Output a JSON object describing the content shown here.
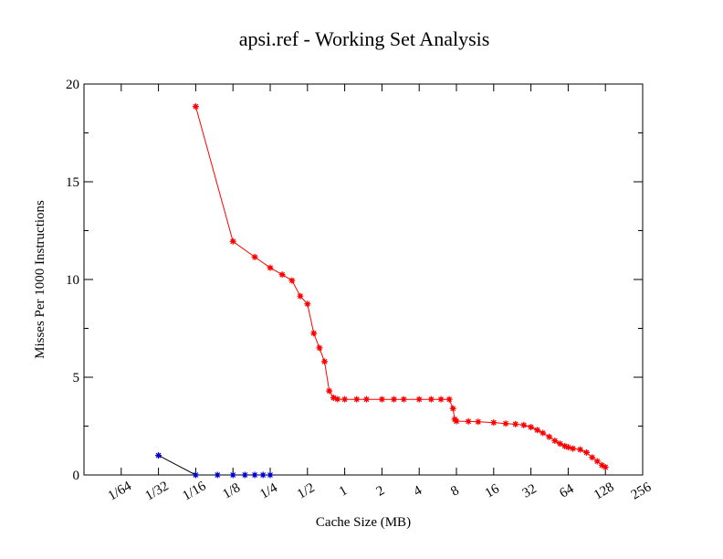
{
  "chart_data": {
    "type": "line",
    "title": "apsi.ref - Working Set Analysis",
    "xlabel": "Cache Size (MB)",
    "ylabel": "Misses Per 1000 Instructions",
    "x_scale": "log2",
    "xlim": [
      0.0078125,
      256
    ],
    "ylim": [
      0,
      20
    ],
    "grid": false,
    "x_ticks": [
      {
        "value": 0.015625,
        "label": "1/64"
      },
      {
        "value": 0.03125,
        "label": "1/32"
      },
      {
        "value": 0.0625,
        "label": "1/16"
      },
      {
        "value": 0.125,
        "label": "1/8"
      },
      {
        "value": 0.25,
        "label": "1/4"
      },
      {
        "value": 0.5,
        "label": "1/2"
      },
      {
        "value": 1,
        "label": "1"
      },
      {
        "value": 2,
        "label": "2"
      },
      {
        "value": 4,
        "label": "4"
      },
      {
        "value": 8,
        "label": "8"
      },
      {
        "value": 16,
        "label": "16"
      },
      {
        "value": 32,
        "label": "32"
      },
      {
        "value": 64,
        "label": "64"
      },
      {
        "value": 128,
        "label": "128"
      },
      {
        "value": 256,
        "label": "256"
      }
    ],
    "y_ticks": [
      {
        "value": 0,
        "label": "0"
      },
      {
        "value": 5,
        "label": "5"
      },
      {
        "value": 10,
        "label": "10"
      },
      {
        "value": 15,
        "label": "15"
      },
      {
        "value": 20,
        "label": "20"
      }
    ],
    "series": [
      {
        "color": "#ff0000",
        "marker": "star",
        "points": [
          [
            0.0625,
            18.85
          ],
          [
            0.125,
            11.95
          ],
          [
            0.1875,
            11.15
          ],
          [
            0.25,
            10.6
          ],
          [
            0.3125,
            10.25
          ],
          [
            0.375,
            9.95
          ],
          [
            0.4375,
            9.15
          ],
          [
            0.5,
            8.75
          ],
          [
            0.5625,
            7.25
          ],
          [
            0.625,
            6.5
          ],
          [
            0.6875,
            5.8
          ],
          [
            0.75,
            4.3
          ],
          [
            0.8125,
            3.95
          ],
          [
            0.875,
            3.88
          ],
          [
            1,
            3.87
          ],
          [
            1.25,
            3.87
          ],
          [
            1.5,
            3.87
          ],
          [
            2,
            3.87
          ],
          [
            2.5,
            3.87
          ],
          [
            3,
            3.87
          ],
          [
            4,
            3.87
          ],
          [
            5,
            3.87
          ],
          [
            6,
            3.87
          ],
          [
            7,
            3.87
          ],
          [
            7.5,
            3.4
          ],
          [
            7.75,
            2.85
          ],
          [
            8,
            2.75
          ],
          [
            10,
            2.74
          ],
          [
            12,
            2.72
          ],
          [
            16,
            2.68
          ],
          [
            20,
            2.63
          ],
          [
            24,
            2.6
          ],
          [
            28,
            2.55
          ],
          [
            32,
            2.45
          ],
          [
            36,
            2.3
          ],
          [
            40,
            2.15
          ],
          [
            45,
            1.95
          ],
          [
            50,
            1.75
          ],
          [
            55,
            1.6
          ],
          [
            60,
            1.48
          ],
          [
            64,
            1.42
          ],
          [
            70,
            1.35
          ],
          [
            80,
            1.3
          ],
          [
            90,
            1.15
          ],
          [
            100,
            0.9
          ],
          [
            110,
            0.7
          ],
          [
            120,
            0.5
          ],
          [
            128,
            0.4
          ]
        ]
      },
      {
        "color": "#0000cc",
        "line_color": "#000000",
        "marker": "star",
        "points": [
          [
            0.03125,
            1.0
          ],
          [
            0.0625,
            0.0
          ],
          [
            0.09375,
            0.0
          ],
          [
            0.125,
            0.0
          ],
          [
            0.15625,
            0.0
          ],
          [
            0.1875,
            0.0
          ],
          [
            0.21875,
            0.0
          ],
          [
            0.25,
            0.0
          ]
        ]
      }
    ]
  }
}
